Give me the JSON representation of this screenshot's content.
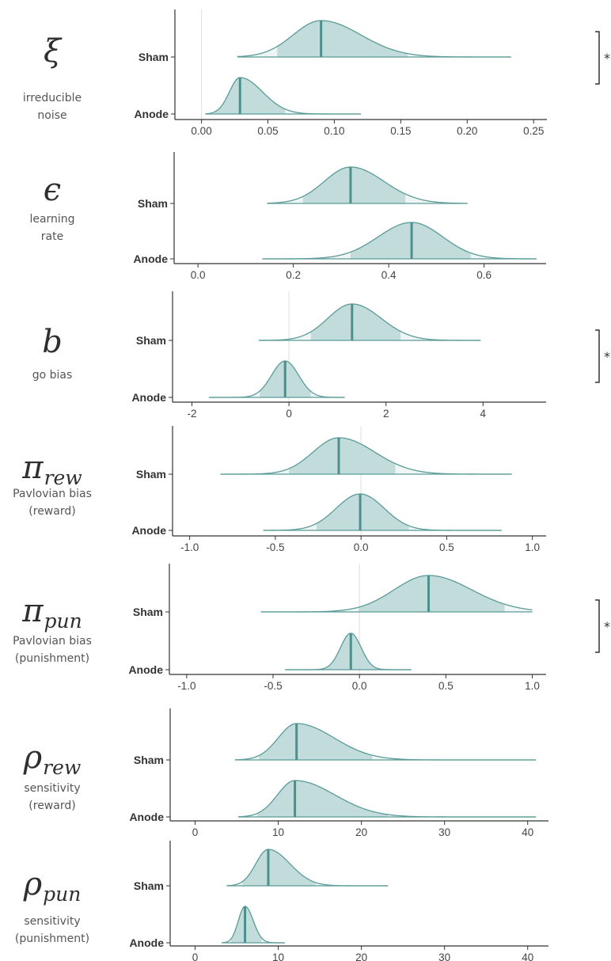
{
  "chart_data": [
    {
      "type": "ridgeline",
      "symbol": "ξ",
      "desc": [
        "irreducible",
        "noise"
      ],
      "significance": "*",
      "xlim": [
        -0.02,
        0.26
      ],
      "ticks": [
        0.0,
        0.05,
        0.1,
        0.15,
        0.2,
        0.25
      ],
      "tick_labels": [
        "0.00",
        "0.05",
        "0.10",
        "0.15",
        "0.20",
        "0.25"
      ],
      "vline": 0,
      "series": [
        {
          "name": "Sham",
          "median": 0.09,
          "hdi": [
            0.057,
            0.155
          ],
          "range": [
            0.027,
            0.233
          ],
          "sd_left": 0.021,
          "sd_right": 0.03
        },
        {
          "name": "Anode",
          "median": 0.029,
          "hdi": [
            0.01,
            0.063
          ],
          "range": [
            0.003,
            0.12
          ],
          "sd_left": 0.008,
          "sd_right": 0.017
        }
      ]
    },
    {
      "type": "ridgeline",
      "symbol": "ϵ",
      "desc": [
        "learning",
        "rate"
      ],
      "significance": "",
      "xlim": [
        -0.05,
        0.73
      ],
      "ticks": [
        0.0,
        0.2,
        0.4,
        0.6
      ],
      "tick_labels": [
        "0.0",
        "0.2",
        "0.4",
        "0.6"
      ],
      "series": [
        {
          "name": "Sham",
          "median": 0.32,
          "hdi": [
            0.22,
            0.435
          ],
          "range": [
            0.145,
            0.565
          ],
          "sd_left": 0.055,
          "sd_right": 0.07
        },
        {
          "name": "Anode",
          "median": 0.448,
          "hdi": [
            0.32,
            0.572
          ],
          "range": [
            0.135,
            0.71
          ],
          "sd_left": 0.07,
          "sd_right": 0.065
        }
      ]
    },
    {
      "type": "ridgeline",
      "symbol": "b",
      "desc": [
        "go bias"
      ],
      "significance": "*",
      "xlim": [
        -2.4,
        5.3
      ],
      "ticks": [
        -2,
        0,
        2,
        4
      ],
      "tick_labels": [
        "-2",
        "0",
        "2",
        "4"
      ],
      "vline": 0,
      "series": [
        {
          "name": "Sham",
          "median": 1.3,
          "hdi": [
            0.45,
            2.3
          ],
          "range": [
            -0.62,
            3.95
          ],
          "sd_left": 0.5,
          "sd_right": 0.6
        },
        {
          "name": "Anode",
          "median": -0.08,
          "hdi": [
            -0.6,
            0.45
          ],
          "range": [
            -1.65,
            1.15
          ],
          "sd_left": 0.28,
          "sd_right": 0.28
        }
      ]
    },
    {
      "type": "ridgeline",
      "symbol": "π",
      "sub": "rew",
      "desc": [
        "Pavlovian bias",
        "(reward)"
      ],
      "significance": "",
      "xlim": [
        -1.1,
        1.08
      ],
      "ticks": [
        -1.0,
        -0.5,
        0.0,
        0.5,
        1.0
      ],
      "tick_labels": [
        "-1.0",
        "-0.5",
        "0.0",
        "0.5",
        "1.0"
      ],
      "vline": 0,
      "series": [
        {
          "name": "Sham",
          "median": -0.13,
          "hdi": [
            -0.42,
            0.2
          ],
          "range": [
            -0.82,
            0.88
          ],
          "sd_left": 0.15,
          "sd_right": 0.21
        },
        {
          "name": "Anode",
          "median": -0.005,
          "hdi": [
            -0.26,
            0.28
          ],
          "range": [
            -0.57,
            0.82
          ],
          "sd_left": 0.14,
          "sd_right": 0.14
        }
      ]
    },
    {
      "type": "ridgeline",
      "symbol": "π",
      "sub": "pun",
      "desc": [
        "Pavlovian bias",
        "(punishment)"
      ],
      "significance": "*",
      "xlim": [
        -1.1,
        1.08
      ],
      "ticks": [
        -1.0,
        -0.5,
        0.0,
        0.5,
        1.0
      ],
      "tick_labels": [
        "-1.0",
        "-0.5",
        "0.0",
        "0.5",
        "1.0"
      ],
      "vline": 0,
      "series": [
        {
          "name": "Sham",
          "median": 0.4,
          "hdi": [
            -0.005,
            0.84
          ],
          "range": [
            -0.57,
            1.0
          ],
          "sd_left": 0.2,
          "sd_right": 0.25
        },
        {
          "name": "Anode",
          "median": -0.05,
          "hdi": [
            -0.21,
            0.12
          ],
          "range": [
            -0.43,
            0.3
          ],
          "sd_left": 0.06,
          "sd_right": 0.06
        }
      ]
    },
    {
      "type": "ridgeline",
      "symbol": "ρ",
      "sub": "rew",
      "desc": [
        "sensitivity",
        "(reward)"
      ],
      "significance": "",
      "xlim": [
        -3.0,
        42.5
      ],
      "ticks": [
        0,
        10,
        20,
        30,
        40
      ],
      "tick_labels": [
        "0",
        "10",
        "20",
        "30",
        "40"
      ],
      "series": [
        {
          "name": "Sham",
          "median": 12.2,
          "hdi": [
            7.7,
            21.3
          ],
          "range": [
            4.8,
            41.0
          ],
          "sd_left": 2.2,
          "sd_right": 4.5
        },
        {
          "name": "Anode",
          "median": 12.0,
          "hdi": [
            7.5,
            23.2
          ],
          "range": [
            5.2,
            41.0
          ],
          "sd_left": 2.1,
          "sd_right": 4.8
        }
      ]
    },
    {
      "type": "ridgeline",
      "symbol": "ρ",
      "sub": "pun",
      "desc": [
        "sensitivity",
        "(punishment)"
      ],
      "significance": "",
      "xlim": [
        -3.0,
        42.5
      ],
      "ticks": [
        0,
        10,
        20,
        30,
        40
      ],
      "tick_labels": [
        "0",
        "10",
        "20",
        "30",
        "40"
      ],
      "series": [
        {
          "name": "Sham",
          "median": 8.8,
          "hdi": [
            5.7,
            14.5
          ],
          "range": [
            3.8,
            23.2
          ],
          "sd_left": 1.5,
          "sd_right": 2.6
        },
        {
          "name": "Anode",
          "median": 6.0,
          "hdi": [
            4.3,
            8.0
          ],
          "range": [
            3.2,
            10.8
          ],
          "sd_left": 0.8,
          "sd_right": 1.0
        }
      ]
    }
  ],
  "colors": {
    "fill": "#c2dcdb",
    "tail_fill": "#eef5f4",
    "line": "#5a9b98",
    "median": "#4d8f8c",
    "axis": "#333333",
    "vline": "#e3e3e3"
  }
}
